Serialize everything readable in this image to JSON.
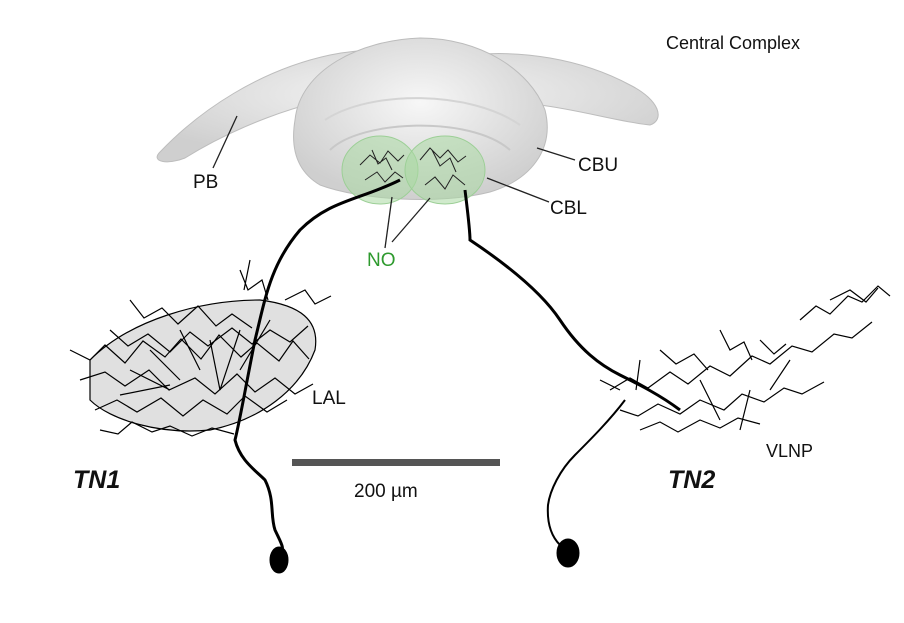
{
  "labels": {
    "region": "Central Complex",
    "pb": "PB",
    "cbu": "CBU",
    "cbl": "CBL",
    "no": "NO",
    "lal": "LAL",
    "vlnp": "VLNP",
    "tn1": "TN1",
    "tn2": "TN2"
  },
  "scale_bar": {
    "label": "200 µm",
    "length_um": 200
  },
  "colors": {
    "neuron": "#000000",
    "brain_fill": "#e3e3e3",
    "noduli": "#8fcf8f",
    "no_label": "#2e9a2e",
    "scale_bar": "#555555"
  }
}
